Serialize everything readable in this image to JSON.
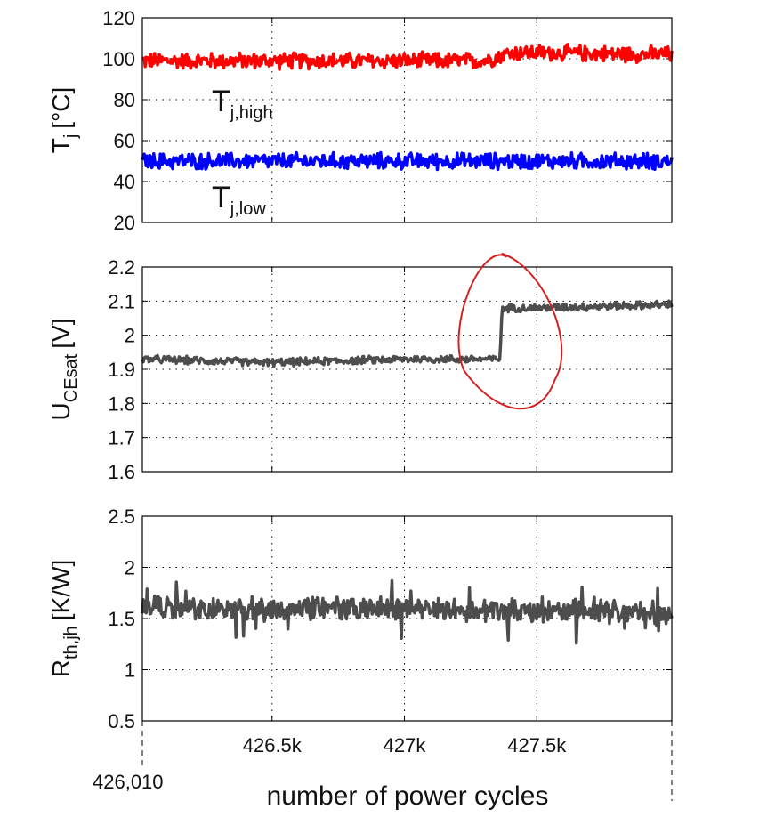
{
  "chart_data": [
    {
      "type": "line",
      "ylabel_main": "T",
      "ylabel_sub": "j",
      "ylabel_unit": "[°C]",
      "ylim": [
        20,
        120
      ],
      "yticks": [
        "20",
        "40",
        "60",
        "80",
        "100",
        "120"
      ],
      "xlim": [
        426010,
        428010
      ],
      "grid": true,
      "series": [
        {
          "name": "T_j,high",
          "label_main": "T",
          "label_sub": "j,high",
          "color": "#ff0000",
          "x": [
            426010,
            426500,
            427000,
            427300,
            427400,
            427500,
            428010
          ],
          "y": [
            99,
            99,
            99,
            99,
            103,
            103,
            102
          ]
        },
        {
          "name": "T_j,low",
          "label_main": "T",
          "label_sub": "j,low",
          "color": "#0000ff",
          "x": [
            426010,
            427000,
            428010
          ],
          "y": [
            50,
            50,
            50
          ]
        }
      ]
    },
    {
      "type": "line",
      "ylabel_main": "U",
      "ylabel_sub": "CEsat",
      "ylabel_unit": "[V]",
      "ylim": [
        1.6,
        2.2
      ],
      "yticks": [
        "1.6",
        "1.7",
        "1.8",
        "1.9",
        "2",
        "2.1",
        "2.2"
      ],
      "xlim": [
        426010,
        428010
      ],
      "grid": true,
      "annotation": "red hand-drawn ellipse around step at ~427.36k",
      "series": [
        {
          "color": "#4d4d4d",
          "x": [
            426010,
            426500,
            427000,
            427360,
            427370,
            427500,
            428010
          ],
          "y": [
            1.93,
            1.92,
            1.93,
            1.93,
            2.08,
            2.08,
            2.09
          ]
        }
      ]
    },
    {
      "type": "line",
      "ylabel_main": "R",
      "ylabel_sub": "th,jh",
      "ylabel_unit": "[K/W]",
      "ylim": [
        0.5,
        2.5
      ],
      "yticks": [
        "0.5",
        "1",
        "1.5",
        "2",
        "2.5"
      ],
      "xlim": [
        426010,
        428010
      ],
      "grid": true,
      "series": [
        {
          "color": "#4d4d4d",
          "x": [
            426010,
            427000,
            428010
          ],
          "y": [
            1.6,
            1.6,
            1.55
          ]
        }
      ]
    }
  ],
  "x_ticks": [
    {
      "value": 426500,
      "label": "426.5k"
    },
    {
      "value": 427000,
      "label": "427k"
    },
    {
      "value": 427500,
      "label": "427.5k"
    }
  ],
  "x_start_label": "426,010",
  "xlabel": "number of power cycles"
}
